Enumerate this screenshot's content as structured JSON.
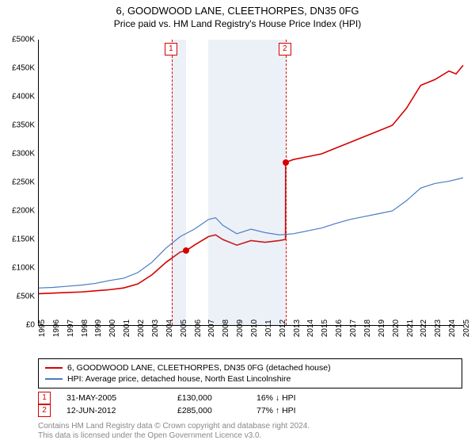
{
  "title": "6, GOODWOOD LANE, CLEETHORPES, DN35 0FG",
  "subtitle": "Price paid vs. HM Land Registry's House Price Index (HPI)",
  "chart": {
    "type": "line",
    "background_color": "#ffffff",
    "ylim": [
      0,
      500000
    ],
    "yticks": [
      0,
      50000,
      100000,
      150000,
      200000,
      250000,
      300000,
      350000,
      400000,
      450000,
      500000
    ],
    "ytick_labels": [
      "£0",
      "£50K",
      "£100K",
      "£150K",
      "£200K",
      "£250K",
      "£300K",
      "£350K",
      "£400K",
      "£450K",
      "£500K"
    ],
    "xlim": [
      1995,
      2025
    ],
    "xticks": [
      1995,
      1996,
      1997,
      1998,
      1999,
      2000,
      2001,
      2002,
      2003,
      2004,
      2005,
      2006,
      2007,
      2008,
      2009,
      2010,
      2011,
      2012,
      2013,
      2014,
      2015,
      2016,
      2017,
      2018,
      2019,
      2020,
      2021,
      2022,
      2023,
      2024,
      2025
    ],
    "label_fontsize": 10,
    "shaded_ranges": [
      {
        "start": 2004.4,
        "end": 2005.4,
        "color": "rgba(120,160,200,0.15)"
      },
      {
        "start": 2007.0,
        "end": 2012.45,
        "color": "rgba(120,160,200,0.15)"
      }
    ],
    "series": [
      {
        "name": "property",
        "label": "6, GOODWOOD LANE, CLEETHORPES, DN35 0FG (detached house)",
        "color": "#d60000",
        "line_width": 1.6,
        "data": [
          [
            1995,
            55000
          ],
          [
            1996,
            56000
          ],
          [
            1997,
            57000
          ],
          [
            1998,
            58000
          ],
          [
            1999,
            60000
          ],
          [
            2000,
            62000
          ],
          [
            2001,
            65000
          ],
          [
            2002,
            72000
          ],
          [
            2003,
            88000
          ],
          [
            2004,
            110000
          ],
          [
            2005,
            128000
          ],
          [
            2005.4,
            130000
          ],
          [
            2006,
            140000
          ],
          [
            2007,
            155000
          ],
          [
            2007.5,
            158000
          ],
          [
            2008,
            150000
          ],
          [
            2009,
            140000
          ],
          [
            2010,
            148000
          ],
          [
            2011,
            145000
          ],
          [
            2012,
            148000
          ],
          [
            2012.44,
            150000
          ],
          [
            2012.45,
            285000
          ],
          [
            2013,
            290000
          ],
          [
            2014,
            295000
          ],
          [
            2015,
            300000
          ],
          [
            2016,
            310000
          ],
          [
            2017,
            320000
          ],
          [
            2018,
            330000
          ],
          [
            2019,
            340000
          ],
          [
            2020,
            350000
          ],
          [
            2021,
            380000
          ],
          [
            2022,
            420000
          ],
          [
            2023,
            430000
          ],
          [
            2024,
            445000
          ],
          [
            2024.5,
            440000
          ],
          [
            2025,
            455000
          ]
        ],
        "markers": [
          {
            "x": 2005.4,
            "y": 130000,
            "color": "#d60000"
          },
          {
            "x": 2012.45,
            "y": 285000,
            "color": "#d60000"
          }
        ]
      },
      {
        "name": "hpi",
        "label": "HPI: Average price, detached house, North East Lincolnshire",
        "color": "#4a7bc4",
        "line_width": 1.2,
        "data": [
          [
            1995,
            65000
          ],
          [
            1996,
            66000
          ],
          [
            1997,
            68000
          ],
          [
            1998,
            70000
          ],
          [
            1999,
            73000
          ],
          [
            2000,
            78000
          ],
          [
            2001,
            82000
          ],
          [
            2002,
            92000
          ],
          [
            2003,
            110000
          ],
          [
            2004,
            135000
          ],
          [
            2005,
            155000
          ],
          [
            2006,
            168000
          ],
          [
            2007,
            185000
          ],
          [
            2007.5,
            188000
          ],
          [
            2008,
            175000
          ],
          [
            2009,
            160000
          ],
          [
            2010,
            168000
          ],
          [
            2011,
            162000
          ],
          [
            2012,
            158000
          ],
          [
            2013,
            160000
          ],
          [
            2014,
            165000
          ],
          [
            2015,
            170000
          ],
          [
            2016,
            178000
          ],
          [
            2017,
            185000
          ],
          [
            2018,
            190000
          ],
          [
            2019,
            195000
          ],
          [
            2020,
            200000
          ],
          [
            2021,
            218000
          ],
          [
            2022,
            240000
          ],
          [
            2023,
            248000
          ],
          [
            2024,
            252000
          ],
          [
            2025,
            258000
          ]
        ]
      }
    ],
    "event_markers": [
      {
        "idx": "1",
        "x": 2004.4,
        "color": "#d60000"
      },
      {
        "idx": "2",
        "x": 2012.45,
        "color": "#d60000"
      }
    ]
  },
  "sales": [
    {
      "idx": "1",
      "date": "31-MAY-2005",
      "price": "£130,000",
      "diff": "16% ↓ HPI",
      "color": "#d60000"
    },
    {
      "idx": "2",
      "date": "12-JUN-2012",
      "price": "£285,000",
      "diff": "77% ↑ HPI",
      "color": "#d60000"
    }
  ],
  "attribution": {
    "line1": "Contains HM Land Registry data © Crown copyright and database right 2024.",
    "line2": "This data is licensed under the Open Government Licence v3.0."
  }
}
